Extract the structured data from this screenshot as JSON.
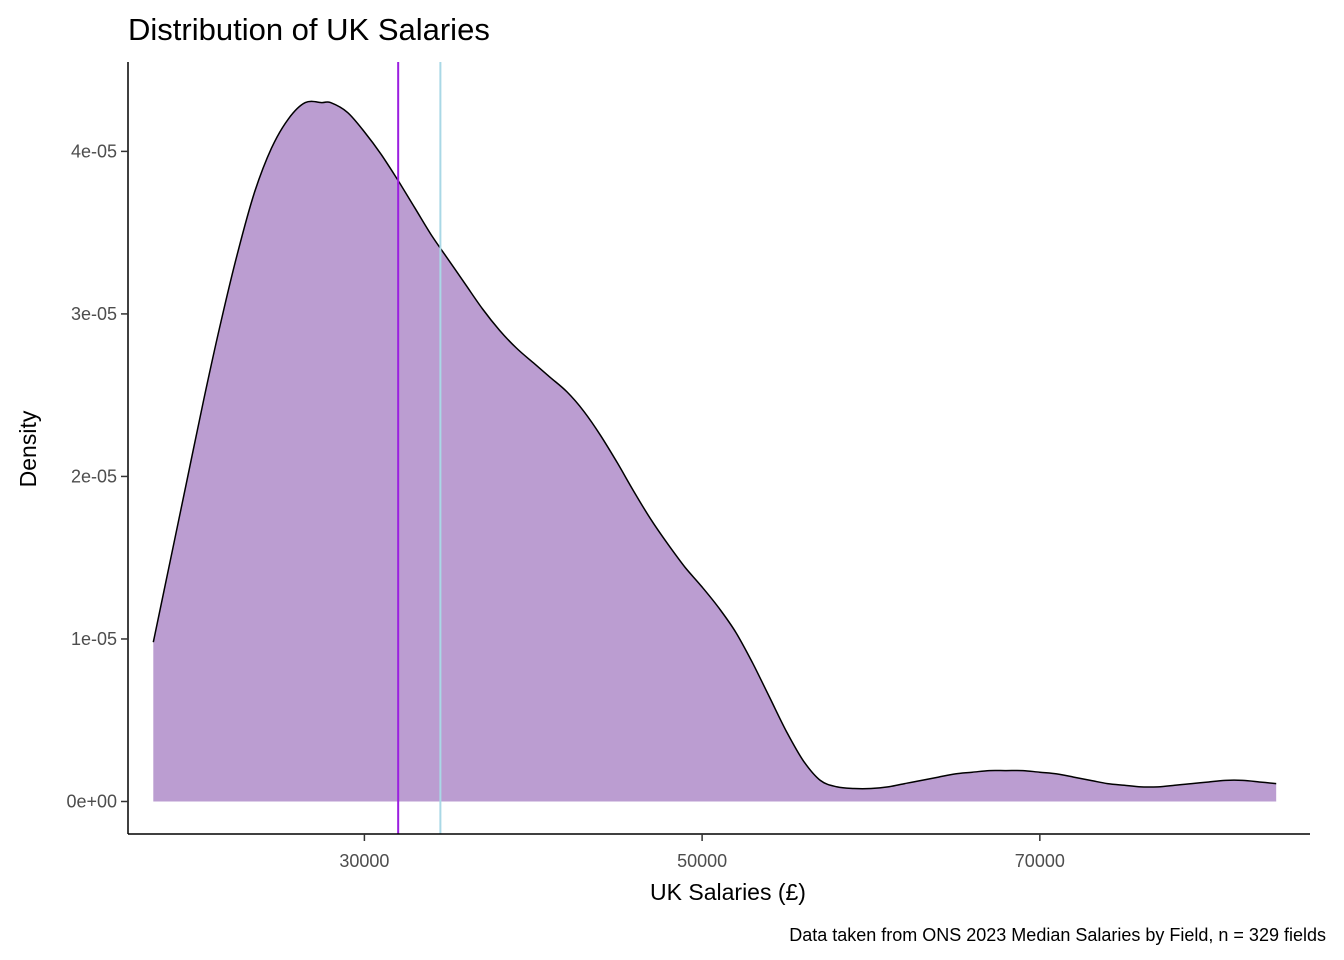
{
  "chart_data": {
    "type": "area",
    "title": "Distribution of UK Salaries",
    "xlabel": "UK Salaries (£)",
    "ylabel": "Density",
    "caption": "Data taken from ONS 2023 Median Salaries by Field, n = 329 fields",
    "xlim": [
      16000,
      86000
    ],
    "ylim": [
      -2e-06,
      4.55e-05
    ],
    "x_ticks": [
      30000,
      50000,
      70000
    ],
    "x_tick_labels": [
      "30000",
      "50000",
      "70000"
    ],
    "y_ticks": [
      0,
      1e-05,
      2e-05,
      3e-05,
      4e-05
    ],
    "y_tick_labels": [
      "0e+00",
      "1e-05",
      "2e-05",
      "3e-05",
      "4e-05"
    ],
    "grid": false,
    "colors": {
      "fill": "#bb9dd1",
      "outline": "#000000",
      "median_line": "#9b1fe0",
      "mean_line": "#a9d8e6"
    },
    "series": [
      {
        "x": [
          17500,
          18500,
          19500,
          20500,
          21500,
          22500,
          23500,
          24500,
          25500,
          26500,
          27500,
          28000,
          29000,
          30000,
          31000,
          32000,
          33000,
          34000,
          35000,
          36000,
          37000,
          38000,
          39000,
          40000,
          41000,
          42000,
          43000,
          44000,
          45000,
          46000,
          47000,
          48000,
          49000,
          50000,
          51000,
          52000,
          53000,
          54000,
          55000,
          56000,
          57000,
          58000,
          59000,
          60000,
          61000,
          62000,
          63000,
          64000,
          65000,
          66000,
          67000,
          68000,
          69000,
          70000,
          71000,
          72000,
          73000,
          74000,
          75000,
          76000,
          77000,
          78000,
          79000,
          80000,
          81000,
          82000,
          83000,
          84000
        ],
        "y": [
          9.8e-06,
          1.48e-05,
          1.98e-05,
          2.48e-05,
          2.95e-05,
          3.38e-05,
          3.75e-05,
          4.02e-05,
          4.2e-05,
          4.3e-05,
          4.3e-05,
          4.3e-05,
          4.24e-05,
          4.12e-05,
          3.98e-05,
          3.82e-05,
          3.65e-05,
          3.48e-05,
          3.33e-05,
          3.18e-05,
          3.03e-05,
          2.9e-05,
          2.79e-05,
          2.7e-05,
          2.61e-05,
          2.52e-05,
          2.4e-05,
          2.25e-05,
          2.08e-05,
          1.9e-05,
          1.73e-05,
          1.58e-05,
          1.44e-05,
          1.32e-05,
          1.19e-05,
          1.04e-05,
          8.5e-06,
          6.4e-06,
          4.3e-06,
          2.5e-06,
          1.3e-06,
          9e-07,
          8e-07,
          8e-07,
          9e-07,
          1.1e-06,
          1.3e-06,
          1.5e-06,
          1.7e-06,
          1.8e-06,
          1.9e-06,
          1.9e-06,
          1.9e-06,
          1.8e-06,
          1.7e-06,
          1.5e-06,
          1.3e-06,
          1.1e-06,
          1e-06,
          9e-07,
          9e-07,
          1e-06,
          1.1e-06,
          1.2e-06,
          1.3e-06,
          1.3e-06,
          1.2e-06,
          1.1e-06
        ]
      }
    ],
    "reference_lines": [
      32000,
      34500
    ]
  }
}
